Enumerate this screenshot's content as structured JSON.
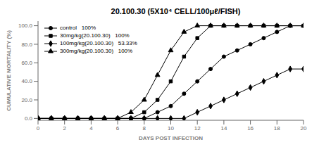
{
  "chart_data": {
    "type": "line",
    "title": "20.100.30 (5X10⁴ CELL/100μℓ/FISH)",
    "xlabel": "DAYS POST INFECTION",
    "ylabel": "CUMULATIVE MORTALITY (%)",
    "x": [
      0,
      1,
      2,
      3,
      4,
      5,
      6,
      7,
      8,
      9,
      10,
      11,
      12,
      13,
      14,
      15,
      16,
      17,
      18,
      19,
      20
    ],
    "xlim": [
      0,
      20
    ],
    "xticks": [
      0,
      2,
      4,
      6,
      8,
      10,
      12,
      14,
      16,
      18,
      20
    ],
    "ylim": [
      -2,
      105
    ],
    "yticks": [
      {
        "value": 0,
        "label": "0.0"
      },
      {
        "value": 20,
        "label": "20.0"
      },
      {
        "value": 40,
        "label": "40.0"
      },
      {
        "value": 60,
        "label": "60.0"
      },
      {
        "value": 80,
        "label": "80.0"
      },
      {
        "value": 100,
        "label": "100.0"
      }
    ],
    "grid": false,
    "legend": "upper left",
    "series": [
      {
        "name": "control   100%",
        "color": "#000000",
        "marker": "circle",
        "values": [
          0,
          0,
          0,
          0,
          0,
          0,
          0,
          0,
          0,
          6.67,
          13.33,
          26.67,
          40,
          53.33,
          66.67,
          73.33,
          80,
          86.67,
          93.33,
          100,
          100
        ]
      },
      {
        "name": "30mg/kg(20.100.30)   100%",
        "color": "#000000",
        "marker": "square",
        "values": [
          0,
          0,
          0,
          0,
          0,
          0,
          0,
          0,
          6.67,
          20,
          40,
          66.67,
          86.67,
          100,
          100,
          100,
          100,
          100,
          100,
          100,
          100
        ]
      },
      {
        "name": "100mg/kg(20.100.30)   53.33%",
        "color": "#000000",
        "marker": "diamond",
        "values": [
          0,
          0,
          0,
          0,
          0,
          0,
          0,
          0,
          0,
          0,
          0,
          0,
          6.67,
          13.33,
          20,
          26.67,
          33.33,
          40,
          46.67,
          53.33,
          53.33
        ]
      },
      {
        "name": "300mg/kg(20.100.30)   100%",
        "color": "#000000",
        "marker": "triangle",
        "values": [
          0,
          0,
          0,
          0,
          0,
          0,
          0,
          6.67,
          20,
          46.67,
          73.33,
          93.33,
          100,
          100,
          100,
          100,
          100,
          100,
          100,
          100,
          100
        ]
      }
    ]
  }
}
